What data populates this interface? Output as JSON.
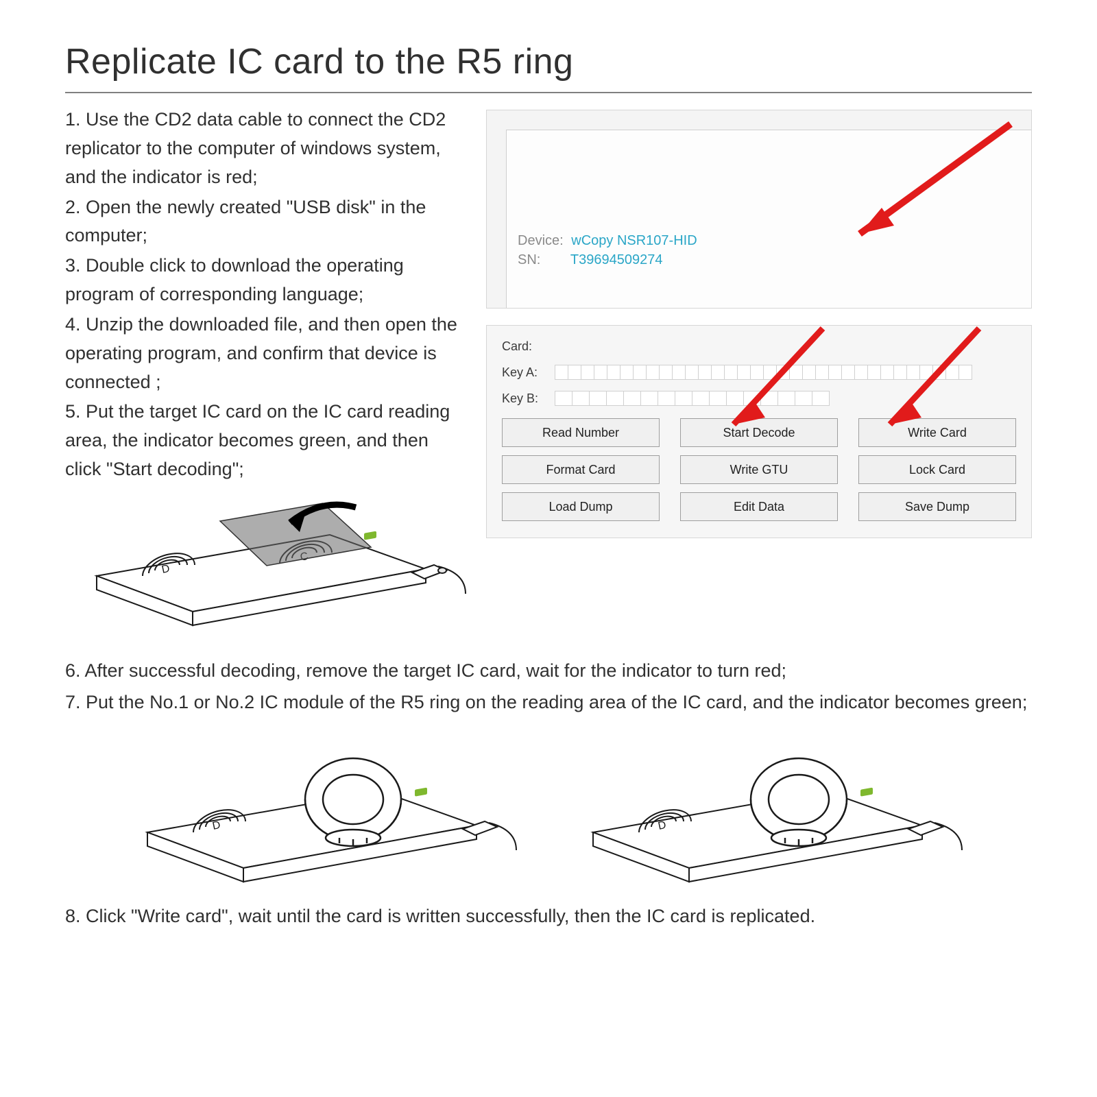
{
  "title": "Replicate IC card to the R5 ring",
  "steps": {
    "s1": "1. Use the CD2 data cable to connect the CD2 replicator to the computer of windows system, and the indicator is red;",
    "s2": "2. Open the newly created \"USB disk\" in the computer;",
    "s3": "3. Double click to download the operating program of corresponding language;",
    "s4": "4. Unzip the downloaded file, and then open the operating program, and confirm that device is connected ;",
    "s5": "5. Put the target IC card on the IC card reading area, the indicator becomes green, and then click \"Start decoding\";",
    "s6": "6. After successful decoding, remove the target IC card, wait for the indicator to turn red;",
    "s7": "7. Put the No.1 or No.2 IC module of the R5 ring on the reading area of the IC card, and the indicator becomes green;",
    "s8": "8. Click \"Write card\", wait until the card is written successfully, then the IC card is replicated."
  },
  "device_panel": {
    "device_label": "Device:",
    "device_value": "wCopy NSR107-HID",
    "sn_label": "SN:",
    "sn_value": "T39694509274"
  },
  "form_panel": {
    "card_label": "Card:",
    "keya_label": "Key A:",
    "keyb_label": "Key B:",
    "buttons": [
      "Read Number",
      "Start Decode",
      "Write Card",
      "Format Card",
      "Write GTU",
      "Lock Card",
      "Load Dump",
      "Edit Data",
      "Save Dump"
    ]
  },
  "colors": {
    "arrow": "#e11b1b",
    "link": "#2aa6c7",
    "led": "#7fb82e"
  }
}
